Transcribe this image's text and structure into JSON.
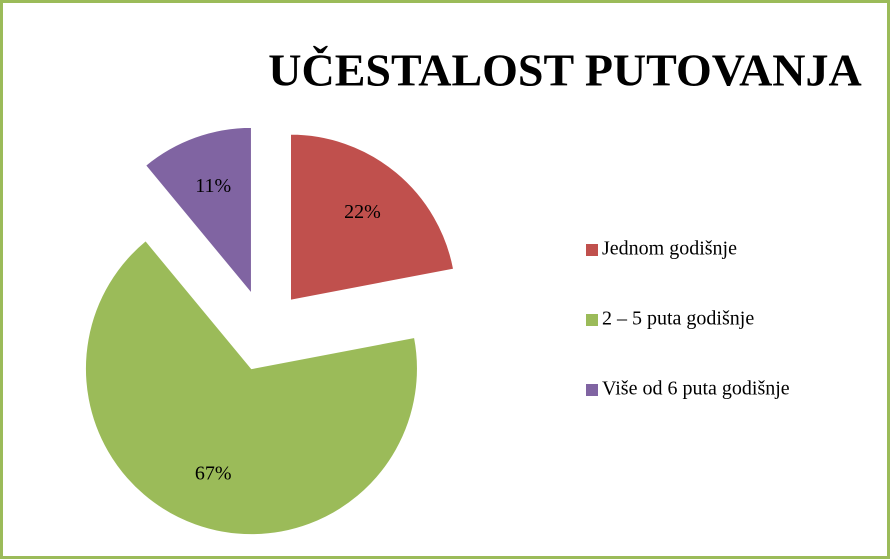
{
  "chart_data": {
    "type": "pie",
    "title": "UČESTALOST PUTOVANJA",
    "categories": [
      "Jednom godišnje",
      "2 – 5 puta godišnje",
      "Više od 6 puta godišnje"
    ],
    "values": [
      22,
      67,
      11
    ],
    "value_labels": [
      "22%",
      "67%",
      "11%"
    ],
    "colors": [
      "#c0504d",
      "#9bbb59",
      "#8064a2"
    ],
    "legend": "right"
  }
}
